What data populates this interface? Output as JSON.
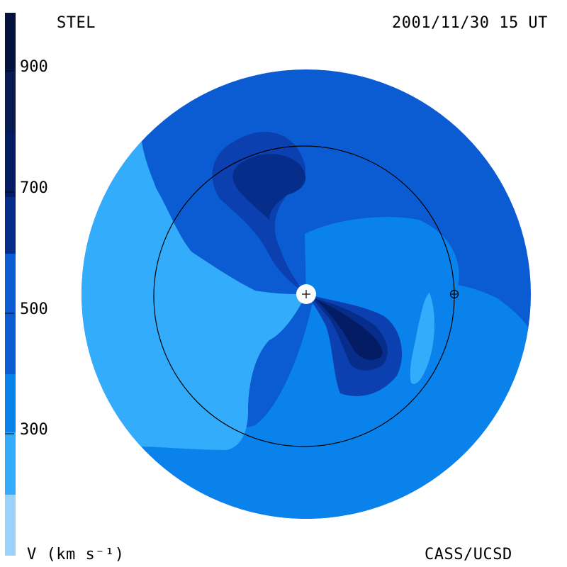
{
  "header": {
    "left_label": "STEL",
    "right_label": "2001/11/30 15 UT"
  },
  "footer": {
    "unit_label": "V (km s⁻¹)",
    "credit": "CASS/UCSD"
  },
  "colorbar": {
    "ticks": [
      "900",
      "700",
      "500",
      "300"
    ],
    "colors": [
      "#04123e",
      "#041c63",
      "#062d8a",
      "#0c3fb0",
      "#0b5cd3",
      "#0a82ec",
      "#33acfb",
      "#9ad2fb"
    ]
  },
  "map": {
    "colors": {
      "v300": "#33acfb",
      "v400": "#0a82ec",
      "v500": "#0b5cd3",
      "v600": "#0c3fb0",
      "v700": "#062d8a",
      "v800": "#041c63"
    },
    "sun_symbol": "+",
    "earth_symbol": "earth-orbit-marker"
  }
}
